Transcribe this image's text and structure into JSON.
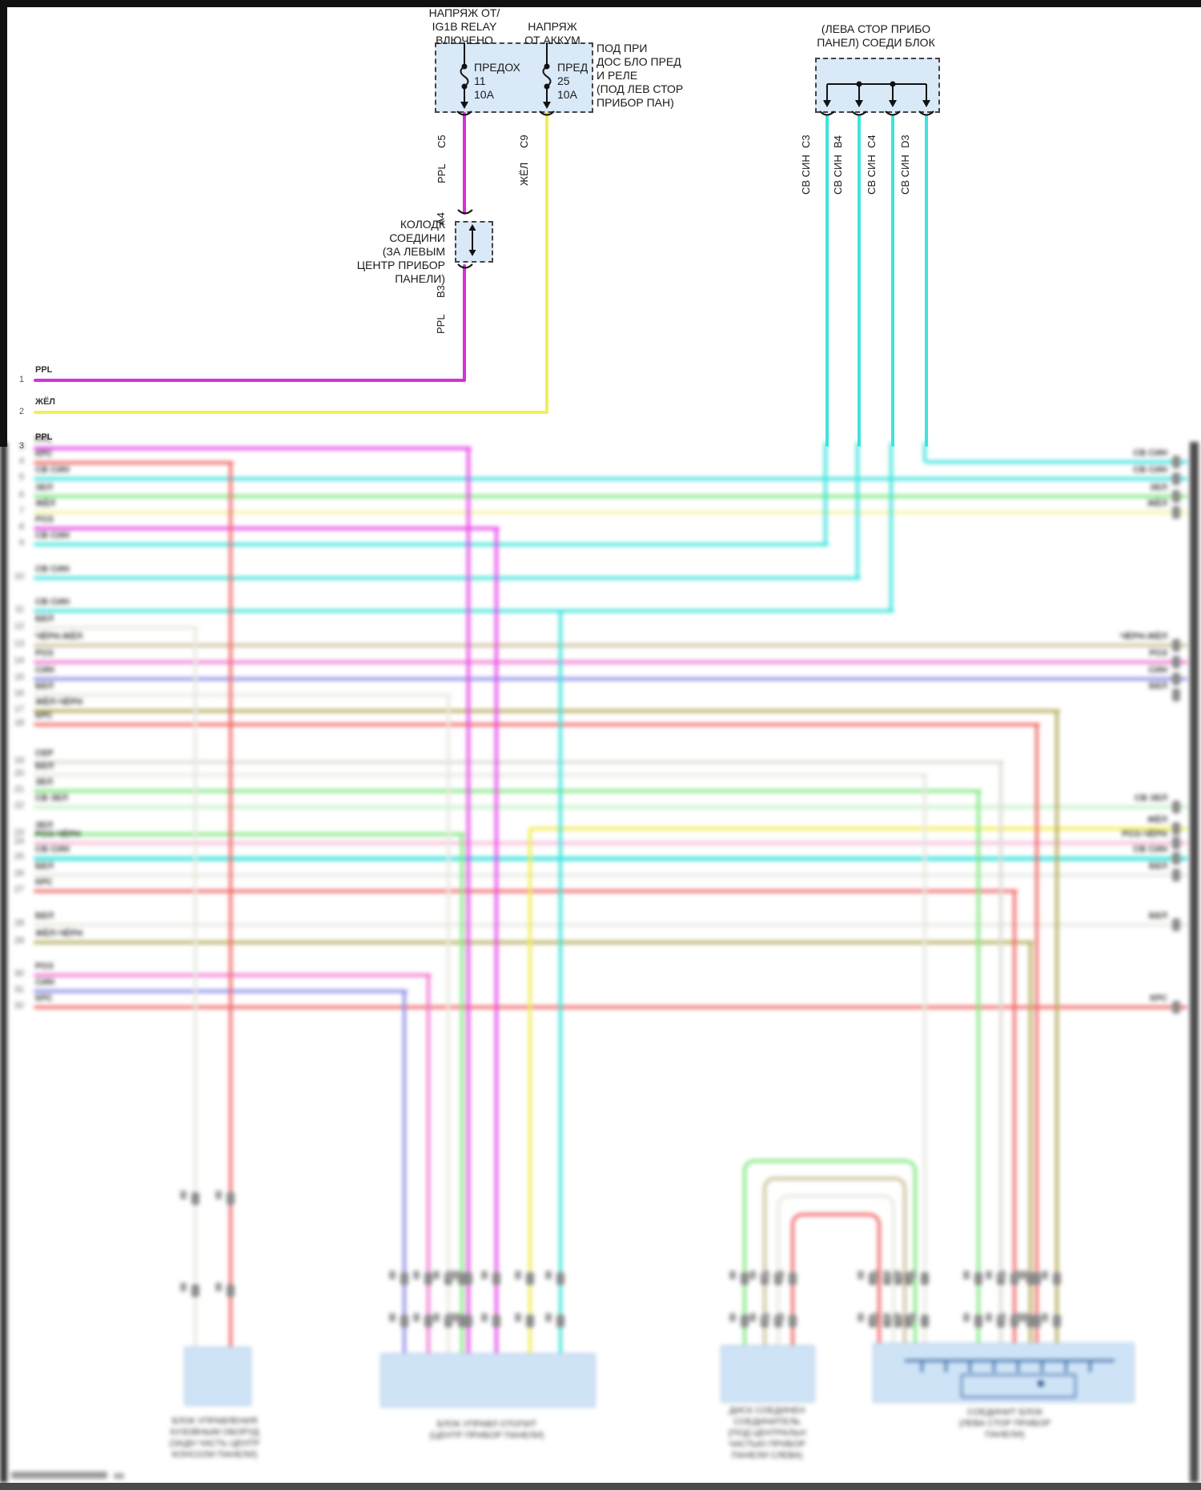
{
  "fuse_panel": {
    "source1_lines": [
      "НАПРЯЖ ОТ/",
      "IG1B RELAY",
      "ВЛЮЧЕНО"
    ],
    "source2_lines": [
      "НАПРЯЖ",
      "ОТ АККУМ"
    ],
    "fuse1": {
      "name": "ПРЕДОХ",
      "num": "11",
      "amp": "10A",
      "pin": "C5",
      "wire": "PPL"
    },
    "fuse2": {
      "name": "ПРЕД",
      "num": "25",
      "amp": "10A",
      "pin": "C9",
      "wire": "ЖЁЛ"
    },
    "note_lines": [
      "ПОД ПРИ",
      "ДОС БЛО ПРЕД",
      "И РЕЛЕ",
      "(ПОД ЛЕВ СТОР",
      "ПРИБОР ПАН)"
    ]
  },
  "junction": {
    "label_lines": [
      "КОЛОДК",
      "СОЕДИНИ",
      "(ЗА ЛЕВЫМ",
      "ЦЕНТР ПРИБОР",
      "ПАНЕЛИ)"
    ],
    "pin_top": "A4",
    "pin_bottom": "B3",
    "wire": "PPL"
  },
  "join_block": {
    "title_lines": [
      "(ЛЕВА СТОР ПРИБО",
      "ПАНЕЛ) СОЕДИ БЛОК"
    ],
    "pins": [
      "C3",
      "B4",
      "C4",
      "D3"
    ],
    "wire": "СВ СИН"
  },
  "left_rows": [
    {
      "n": "1",
      "label": "PPL"
    },
    {
      "n": "2",
      "label": "ЖЁЛ"
    },
    {
      "n": "3",
      "label": "PPL"
    },
    {
      "n": "4",
      "label": "КРС"
    },
    {
      "n": "5",
      "label": "СВ СИН"
    },
    {
      "n": "6",
      "label": "ЗЕЛ"
    },
    {
      "n": "7",
      "label": "ЖЁЛ"
    },
    {
      "n": "8",
      "label": "РОЗ"
    },
    {
      "n": "9",
      "label": "СВ СИН"
    },
    {
      "n": "10",
      "label": "СВ СИН"
    },
    {
      "n": "11",
      "label": "СВ СИН"
    },
    {
      "n": "12",
      "label": "БЕЛ"
    },
    {
      "n": "13",
      "label": "ЧЁРН-ЖЁЛ"
    },
    {
      "n": "14",
      "label": "РОЗ"
    },
    {
      "n": "15",
      "label": "СИН"
    },
    {
      "n": "16",
      "label": "БЕЛ"
    },
    {
      "n": "17",
      "label": "ЖЁЛ-ЧЁРН"
    },
    {
      "n": "18",
      "label": "КРС"
    },
    {
      "n": "19",
      "label": "СЕР"
    },
    {
      "n": "20",
      "label": "БЕЛ"
    },
    {
      "n": "21",
      "label": "ЗЕЛ"
    },
    {
      "n": "22",
      "label": "СВ ЗЕЛ"
    },
    {
      "n": "23",
      "label": "ЗЕЛ"
    },
    {
      "n": "24",
      "label": "РОЗ-ЧЁРН"
    },
    {
      "n": "25",
      "label": "СВ СИН"
    },
    {
      "n": "26",
      "label": "БЕЛ"
    },
    {
      "n": "27",
      "label": "КРС"
    },
    {
      "n": "28",
      "label": "БЕЛ"
    },
    {
      "n": "29",
      "label": "ЖЁЛ-ЧЁРН"
    },
    {
      "n": "30",
      "label": "РОЗ"
    },
    {
      "n": "31",
      "label": "СИН"
    },
    {
      "n": "32",
      "label": "КРС"
    }
  ],
  "right_labels": [
    "СВ СИН",
    "СВ СИН",
    "ЗЕЛ",
    "ЖЁЛ",
    "ЧЁРН-ЖЁЛ",
    "РОЗ",
    "СИН",
    "БЕЛ",
    "СВ ЗЕЛ",
    "ЖЁЛ",
    "РОЗ-ЧЁРН",
    "СВ СИН",
    "БЕЛ",
    "БЕЛ",
    "КРС"
  ],
  "captions": {
    "block1": [
      "БЛОК УПРАВЛЕНИЯ",
      "КУЗОВНЫМ ОБОРУД",
      "(ЗАДН ЧАСТЬ ЦЕНТР",
      "КОНСОЛИ ПАНЕЛИ)"
    ],
    "block2": [
      "БЛОК УПРАВЛ ОТОПИТ",
      "(ЦЕНТР ПРИБОР ПАНЕЛИ)"
    ],
    "block3": [
      "ДИСК СОЕДИНЕН",
      "СОЕДИНИТЕЛЬ",
      "(ПОД ЦЕНТРАЛЬН",
      "ЧАСТЬЮ ПРИБОР",
      "ПАНЕЛИ СЛЕВА)"
    ],
    "block4": [
      "СОЕДИНИТ БЛОК",
      "(ЛЕВА СТОР ПРИБОР",
      "ПАНЕЛИ)"
    ]
  },
  "colors": {
    "ppl": "#d92ed9",
    "mag": "#e84ae8",
    "yel": "#f2ee55",
    "pyl": "#f6f3a6",
    "red": "#f26b6b",
    "cyn": "#3fe3dc",
    "grn": "#84e884",
    "lgn": "#c6f2c6",
    "pnk": "#f07ad2",
    "ros": "#f5bcd8",
    "blu": "#8f8fea",
    "wht": "#e9e9e1",
    "tan": "#cdc09b",
    "olv": "#b7ad60",
    "gry": "#dcdcd4"
  }
}
